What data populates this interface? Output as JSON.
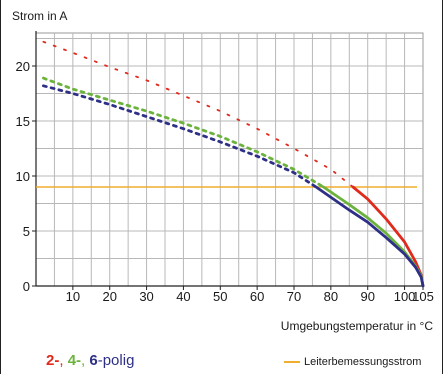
{
  "chart_data": {
    "type": "line",
    "ylabel": "Strom in A",
    "xlabel": "Umgebungstemperatur in °C",
    "xlim": [
      0,
      105
    ],
    "ylim": [
      0,
      23
    ],
    "x_ticks": [
      10,
      20,
      30,
      40,
      50,
      60,
      70,
      80,
      90,
      100,
      105
    ],
    "y_ticks": [
      0,
      5,
      10,
      15,
      20
    ],
    "grid": true,
    "series": [
      {
        "name": "2-polig",
        "color": "#e02a1d",
        "dotted_x": [
          2,
          10,
          20,
          30,
          40,
          50,
          60,
          70,
          80,
          86
        ],
        "dotted_y": [
          22.2,
          21.2,
          19.9,
          18.7,
          17.3,
          15.9,
          14.3,
          12.5,
          10.6,
          9.0
        ],
        "solid_x": [
          86,
          90,
          95,
          100,
          103,
          104.5,
          105
        ],
        "solid_y": [
          9.0,
          7.9,
          6.1,
          4.0,
          2.2,
          1.0,
          0.0
        ]
      },
      {
        "name": "4-polig",
        "color": "#6cb33e",
        "dotted_x": [
          2,
          10,
          20,
          30,
          40,
          50,
          60,
          70,
          78
        ],
        "dotted_y": [
          18.9,
          17.9,
          16.9,
          15.9,
          14.8,
          13.6,
          12.2,
          10.6,
          9.0
        ],
        "solid_x": [
          78,
          85,
          90,
          95,
          100,
          103,
          104.5,
          105
        ],
        "solid_y": [
          9.0,
          7.4,
          6.2,
          4.8,
          3.1,
          1.8,
          0.9,
          0.0
        ]
      },
      {
        "name": "6-polig",
        "color": "#2e2f86",
        "dotted_x": [
          2,
          10,
          20,
          30,
          40,
          50,
          60,
          70,
          76
        ],
        "dotted_y": [
          18.2,
          17.5,
          16.5,
          15.4,
          14.3,
          13.1,
          11.8,
          10.3,
          9.0
        ],
        "solid_x": [
          76,
          85,
          90,
          95,
          100,
          103,
          104.5,
          105
        ],
        "solid_y": [
          9.0,
          6.9,
          5.8,
          4.4,
          2.9,
          1.7,
          0.8,
          0.0
        ]
      }
    ],
    "reference_line": {
      "name": "Leiterbemessungsstrom",
      "y": 9,
      "color": "#f0ad2e"
    }
  },
  "legend": {
    "n2": "2-",
    "sep1": ",",
    "n4": "4-",
    "sep2": ",",
    "n6": "6",
    "suffix": "-polig",
    "reference_label": "Leiterbemessungsstrom"
  }
}
